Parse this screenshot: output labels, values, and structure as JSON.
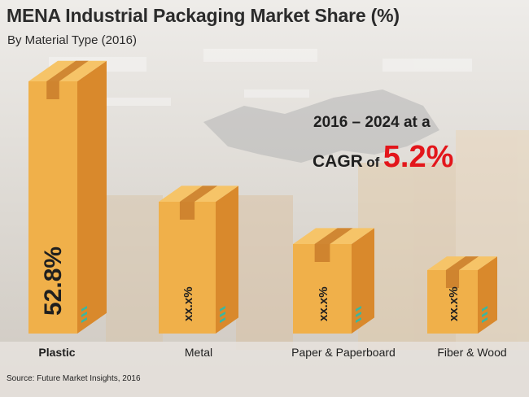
{
  "title": "MENA Industrial Packaging Market Share (%)",
  "subtitle": "By Material Type (2016)",
  "cagr": {
    "line1": "2016 – 2024 at a",
    "prefix": "CAGR",
    "of": "of",
    "value": "5.2%"
  },
  "source": "Source: Future Market Insights, 2016",
  "colors": {
    "box_front": "#f0b04a",
    "box_side": "#d9892c",
    "box_top": "#f6c468",
    "box_tape": "#c97c2a",
    "accent": "#e3161b",
    "stripe": "#3ab7a0"
  },
  "chart_data": {
    "type": "bar",
    "title": "MENA Industrial Packaging Market Share (%)",
    "subtitle": "By Material Type (2016)",
    "categories": [
      "Plastic",
      "Metal",
      "Paper & Paperboard",
      "Fiber & Wood"
    ],
    "values": [
      52.8,
      null,
      null,
      null
    ],
    "data_labels": [
      "52.8%",
      "xx.x%",
      "xx.x%",
      "xx.x%"
    ],
    "xlabel": "",
    "ylabel": "",
    "legend": "none",
    "grid": false
  }
}
